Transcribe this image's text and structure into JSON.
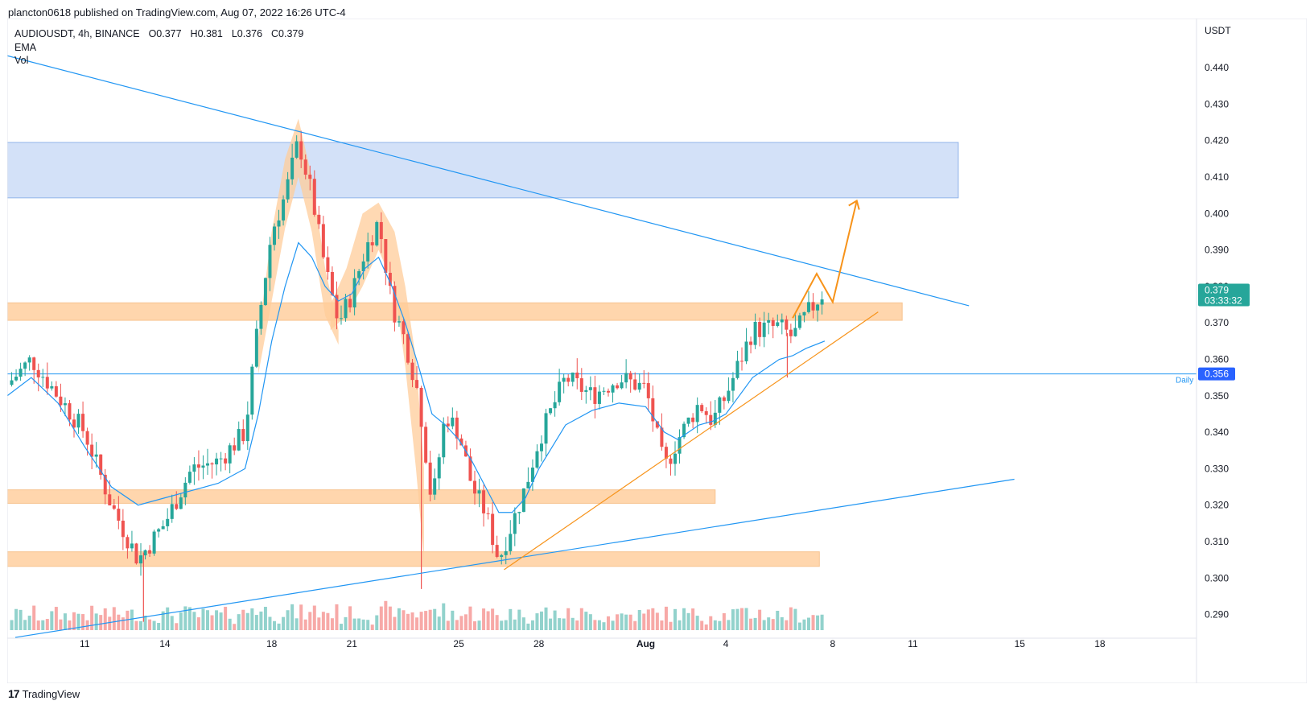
{
  "header": {
    "text": "plancton0618 published on TradingView.com, Aug 07, 2022 16:26 UTC-4"
  },
  "legend": {
    "symbol_line": "AUDIOUSDT, 4h, BINANCE",
    "open": "O0.377",
    "high": "H0.381",
    "low": "L0.376",
    "close": "C0.379",
    "ema": "EMA",
    "vol": "Vol"
  },
  "footer": {
    "logo": "17",
    "brand": "TradingView"
  },
  "colors": {
    "up": "#26a69a",
    "down": "#ef5350",
    "ema": "#2196f3",
    "zone_orange": "#ffcc99",
    "zone_blue": "#c8daf6",
    "trendline": "#2196f3",
    "orange": "#f7931a",
    "price_badge": "#26a69a",
    "daily_badge": "#2962ff"
  },
  "chart_data": {
    "type": "candlestick",
    "symbol": "AUDIOUSDT",
    "interval": "4h",
    "exchange": "BINANCE",
    "currency": "USDT",
    "ylim": [
      0.2835,
      0.4535
    ],
    "yticks": [
      0.44,
      0.43,
      0.42,
      0.41,
      0.4,
      0.39,
      0.38,
      0.37,
      0.36,
      0.35,
      0.34,
      0.33,
      0.32,
      0.31,
      0.3,
      0.29
    ],
    "ytick_labels": [
      "0.440",
      "0.430",
      "0.420",
      "0.410",
      "0.400",
      "0.390",
      "0.380",
      "0.370",
      "0.360",
      "0.350",
      "0.340",
      "0.330",
      "0.320",
      "0.310",
      "0.300",
      "0.290"
    ],
    "x_day_range": [
      8.1,
      22.7
    ],
    "xticks": [
      {
        "day": 11,
        "label": "11"
      },
      {
        "day": 14,
        "label": "14"
      },
      {
        "day": 18,
        "label": "18"
      },
      {
        "day": 21,
        "label": "21"
      },
      {
        "day": 25,
        "label": "25"
      },
      {
        "day": 28,
        "label": "28"
      },
      {
        "day": 32,
        "label": "Aug"
      },
      {
        "day": 35,
        "label": "4"
      },
      {
        "day": 39,
        "label": "8"
      },
      {
        "day": 42,
        "label": "11"
      },
      {
        "day": 46,
        "label": "15"
      },
      {
        "day": 49,
        "label": "18"
      }
    ],
    "last_price": "0.379",
    "countdown": "03:33:32",
    "daily_level": {
      "value": 0.356,
      "label": "0.356",
      "tag": "Daily"
    },
    "price_path_days": [
      8.1,
      9.0,
      10.0,
      11.0,
      12.0,
      13.0,
      14.0,
      15.0,
      16.0,
      17.0,
      17.5,
      18.0,
      18.5,
      19.0,
      19.5,
      20.0,
      20.5,
      21.0,
      21.5,
      22.0,
      22.5,
      23.0,
      23.5,
      24.0,
      24.5,
      25.0,
      25.5,
      26.0,
      26.5,
      27.0,
      27.5,
      28.0,
      29.0,
      30.0,
      31.0,
      32.0,
      32.7,
      33.2,
      34.0,
      34.5,
      35.0,
      36.0,
      37.0,
      37.5,
      38.0,
      38.7
    ],
    "price_path_values": [
      0.353,
      0.36,
      0.35,
      0.34,
      0.32,
      0.305,
      0.315,
      0.33,
      0.332,
      0.34,
      0.37,
      0.395,
      0.405,
      0.42,
      0.405,
      0.385,
      0.37,
      0.378,
      0.39,
      0.398,
      0.375,
      0.365,
      0.35,
      0.32,
      0.345,
      0.34,
      0.325,
      0.318,
      0.305,
      0.315,
      0.325,
      0.338,
      0.355,
      0.35,
      0.355,
      0.352,
      0.33,
      0.338,
      0.348,
      0.343,
      0.35,
      0.368,
      0.369,
      0.366,
      0.372,
      0.379
    ],
    "ema_path_values": [
      0.35,
      0.355,
      0.348,
      0.336,
      0.325,
      0.32,
      0.322,
      0.324,
      0.326,
      0.33,
      0.345,
      0.365,
      0.38,
      0.392,
      0.388,
      0.38,
      0.376,
      0.378,
      0.385,
      0.388,
      0.38,
      0.37,
      0.358,
      0.345,
      0.342,
      0.338,
      0.332,
      0.325,
      0.318,
      0.318,
      0.322,
      0.33,
      0.342,
      0.346,
      0.348,
      0.347,
      0.34,
      0.338,
      0.342,
      0.343,
      0.345,
      0.355,
      0.36,
      0.361,
      0.363,
      0.365
    ],
    "spikes": [
      {
        "day": 13.2,
        "low": 0.288
      },
      {
        "day": 23.6,
        "low": 0.297
      },
      {
        "day": 37.3,
        "low": 0.355
      }
    ],
    "zones": [
      {
        "from_day": 8.1,
        "to_day": 43.7,
        "low": 0.4043,
        "high": 0.4195,
        "color": "blue"
      },
      {
        "from_day": 8.1,
        "to_day": 41.6,
        "low": 0.3707,
        "high": 0.3755,
        "color": "orange"
      },
      {
        "from_day": 8.1,
        "to_day": 34.6,
        "low": 0.3205,
        "high": 0.3242,
        "color": "orange"
      },
      {
        "from_day": 8.1,
        "to_day": 38.5,
        "low": 0.3032,
        "high": 0.3072,
        "color": "orange"
      }
    ],
    "trendlines": [
      {
        "from": [
          8.1,
          0.4433
        ],
        "to": [
          44.1,
          0.3747
        ],
        "color": "blue"
      },
      {
        "from": [
          8.4,
          0.2837
        ],
        "to": [
          45.8,
          0.3271
        ],
        "color": "blue"
      },
      {
        "from": [
          26.7,
          0.3023
        ],
        "to": [
          40.7,
          0.373
        ],
        "color": "orange"
      }
    ],
    "projection": {
      "color": "orange",
      "points": [
        [
          37.5,
          0.3713
        ],
        [
          38.4,
          0.3835
        ],
        [
          39.0,
          0.3757
        ],
        [
          39.9,
          0.4035
        ]
      ]
    },
    "highlights": [
      {
        "days": [
          17.5,
          18.0,
          18.5,
          19.0,
          19.5,
          20.0,
          20.5
        ],
        "top": [
          0.366,
          0.395,
          0.415,
          0.426,
          0.41,
          0.385,
          0.368
        ],
        "bottom": [
          0.356,
          0.376,
          0.396,
          0.41,
          0.395,
          0.372,
          0.364
        ],
        "color": "orange"
      },
      {
        "days": [
          20.2,
          20.8,
          21.4,
          22.0,
          22.6,
          23.0,
          23.4,
          23.7
        ],
        "top": [
          0.375,
          0.385,
          0.4,
          0.403,
          0.395,
          0.38,
          0.36,
          0.33
        ],
        "bottom": [
          0.368,
          0.372,
          0.38,
          0.39,
          0.38,
          0.358,
          0.33,
          0.305
        ],
        "color": "orange"
      }
    ]
  }
}
